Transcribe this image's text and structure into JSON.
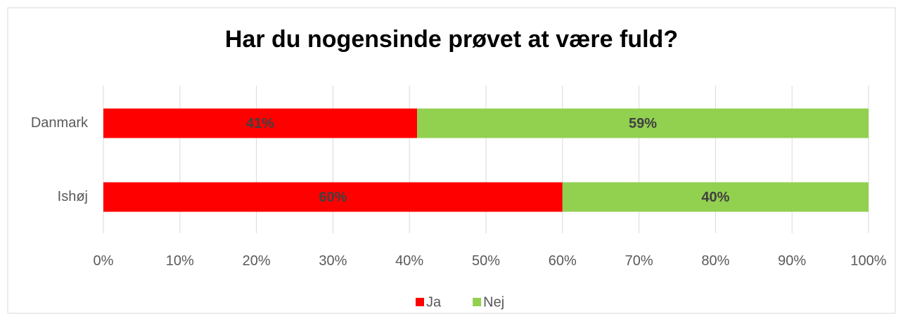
{
  "chart_data": {
    "type": "stacked_bar_horizontal",
    "title": "Har du nogensinde prøvet at være fuld?",
    "categories": [
      "Danmark",
      "Ishøj"
    ],
    "series": [
      {
        "name": "Ja",
        "color": "#ff0000",
        "values": [
          41,
          60
        ],
        "value_labels": [
          "41%",
          "60%"
        ]
      },
      {
        "name": "Nej",
        "color": "#92d050",
        "values": [
          59,
          40
        ],
        "value_labels": [
          "59%",
          "40%"
        ]
      }
    ],
    "xlim": [
      0,
      100
    ],
    "xticks": [
      {
        "value": 0,
        "label": "0%"
      },
      {
        "value": 10,
        "label": "10%"
      },
      {
        "value": 20,
        "label": "20%"
      },
      {
        "value": 30,
        "label": "30%"
      },
      {
        "value": 40,
        "label": "40%"
      },
      {
        "value": 50,
        "label": "50%"
      },
      {
        "value": 60,
        "label": "60%"
      },
      {
        "value": 70,
        "label": "70%"
      },
      {
        "value": 80,
        "label": "80%"
      },
      {
        "value": 90,
        "label": "90%"
      },
      {
        "value": 100,
        "label": "100%"
      }
    ],
    "grid": true,
    "legend": "bottom"
  }
}
